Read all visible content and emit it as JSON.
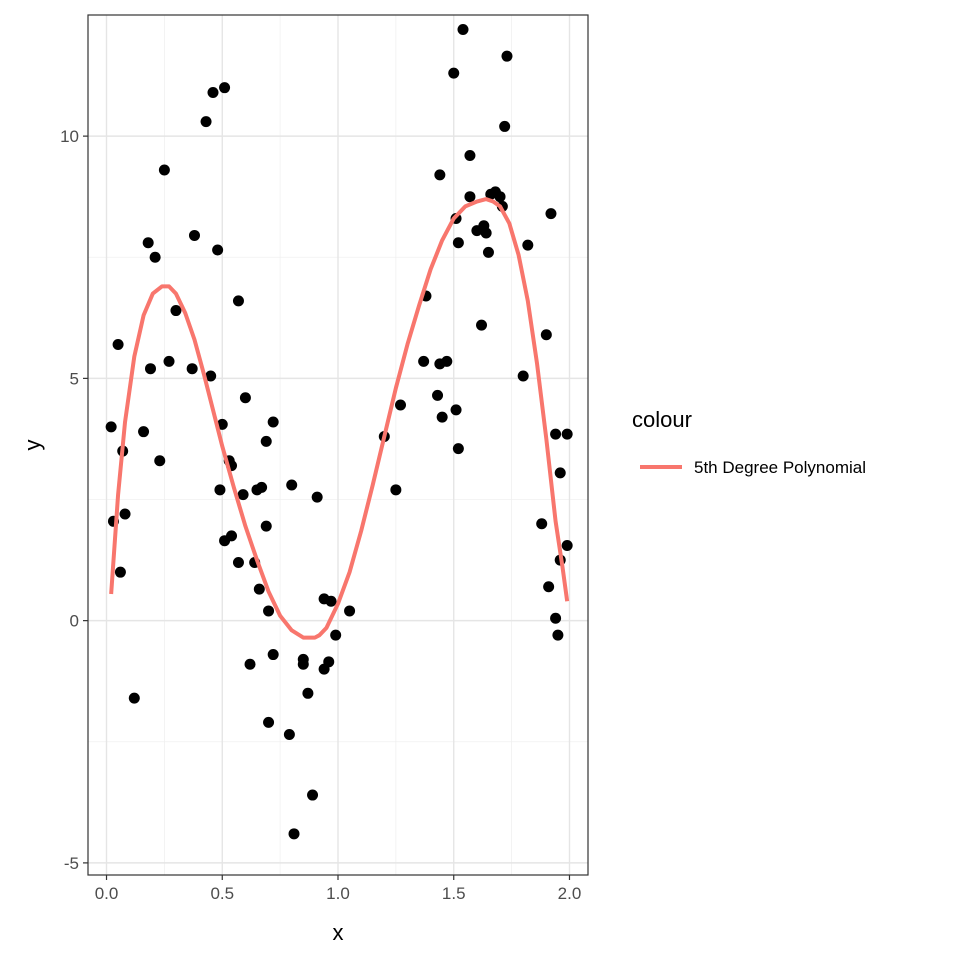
{
  "chart_data": {
    "type": "scatter",
    "title": "",
    "xlabel": "x",
    "ylabel": "y",
    "xlim": [
      -0.08,
      2.08
    ],
    "ylim": [
      -5.25,
      12.5
    ],
    "x_ticks": [
      0.0,
      0.5,
      1.0,
      1.5,
      2.0
    ],
    "x_tick_labels": [
      "0.0",
      "0.5",
      "1.0",
      "1.5",
      "2.0"
    ],
    "y_ticks": [
      -5,
      0,
      5,
      10
    ],
    "y_tick_labels": [
      "-5",
      "0",
      "5",
      "10"
    ],
    "grid": true,
    "legend": {
      "title": "colour",
      "position": "right",
      "entries": [
        {
          "label": "5th Degree Polynomial",
          "color": "#f8766d"
        }
      ]
    },
    "points": [
      [
        0.02,
        4.0
      ],
      [
        0.03,
        2.05
      ],
      [
        0.05,
        5.7
      ],
      [
        0.06,
        1.0
      ],
      [
        0.07,
        3.5
      ],
      [
        0.08,
        2.2
      ],
      [
        0.12,
        -1.6
      ],
      [
        0.16,
        3.9
      ],
      [
        0.18,
        7.8
      ],
      [
        0.19,
        5.2
      ],
      [
        0.21,
        7.5
      ],
      [
        0.23,
        3.3
      ],
      [
        0.25,
        9.3
      ],
      [
        0.27,
        5.35
      ],
      [
        0.3,
        6.4
      ],
      [
        0.37,
        5.2
      ],
      [
        0.38,
        7.95
      ],
      [
        0.43,
        10.3
      ],
      [
        0.45,
        5.05
      ],
      [
        0.46,
        10.9
      ],
      [
        0.48,
        7.65
      ],
      [
        0.49,
        2.7
      ],
      [
        0.5,
        4.05
      ],
      [
        0.51,
        11.0
      ],
      [
        0.51,
        1.65
      ],
      [
        0.53,
        3.3
      ],
      [
        0.54,
        3.2
      ],
      [
        0.54,
        1.75
      ],
      [
        0.57,
        6.6
      ],
      [
        0.57,
        1.2
      ],
      [
        0.59,
        2.6
      ],
      [
        0.6,
        4.6
      ],
      [
        0.62,
        -0.9
      ],
      [
        0.64,
        1.2
      ],
      [
        0.65,
        2.7
      ],
      [
        0.66,
        0.65
      ],
      [
        0.67,
        2.75
      ],
      [
        0.69,
        3.7
      ],
      [
        0.69,
        1.95
      ],
      [
        0.7,
        0.2
      ],
      [
        0.7,
        -2.1
      ],
      [
        0.72,
        4.1
      ],
      [
        0.72,
        -0.7
      ],
      [
        0.79,
        -2.35
      ],
      [
        0.8,
        2.8
      ],
      [
        0.81,
        -4.4
      ],
      [
        0.85,
        -0.8
      ],
      [
        0.85,
        -0.9
      ],
      [
        0.87,
        -1.5
      ],
      [
        0.89,
        -3.6
      ],
      [
        0.91,
        2.55
      ],
      [
        0.94,
        0.45
      ],
      [
        0.94,
        -1.0
      ],
      [
        0.96,
        -0.85
      ],
      [
        0.97,
        0.4
      ],
      [
        0.99,
        -0.3
      ],
      [
        1.05,
        0.2
      ],
      [
        1.2,
        3.8
      ],
      [
        1.25,
        2.7
      ],
      [
        1.27,
        4.45
      ],
      [
        1.37,
        5.35
      ],
      [
        1.38,
        6.7
      ],
      [
        1.43,
        4.65
      ],
      [
        1.44,
        9.2
      ],
      [
        1.44,
        5.3
      ],
      [
        1.45,
        4.2
      ],
      [
        1.47,
        5.35
      ],
      [
        1.5,
        11.3
      ],
      [
        1.51,
        8.3
      ],
      [
        1.51,
        4.35
      ],
      [
        1.52,
        7.8
      ],
      [
        1.52,
        3.55
      ],
      [
        1.54,
        12.2
      ],
      [
        1.57,
        8.75
      ],
      [
        1.57,
        9.6
      ],
      [
        1.6,
        8.05
      ],
      [
        1.62,
        6.1
      ],
      [
        1.63,
        8.15
      ],
      [
        1.64,
        8.0
      ],
      [
        1.65,
        7.6
      ],
      [
        1.66,
        8.8
      ],
      [
        1.68,
        8.85
      ],
      [
        1.7,
        8.75
      ],
      [
        1.71,
        8.55
      ],
      [
        1.73,
        11.65
      ],
      [
        1.72,
        10.2
      ],
      [
        1.8,
        5.05
      ],
      [
        1.82,
        7.75
      ],
      [
        1.88,
        2.0
      ],
      [
        1.9,
        5.9
      ],
      [
        1.91,
        0.7
      ],
      [
        1.92,
        8.4
      ],
      [
        1.94,
        3.85
      ],
      [
        1.94,
        0.05
      ],
      [
        1.95,
        -0.3
      ],
      [
        1.96,
        3.05
      ],
      [
        1.96,
        1.25
      ],
      [
        1.99,
        3.85
      ],
      [
        1.99,
        1.55
      ]
    ],
    "series": [
      {
        "name": "5th Degree Polynomial",
        "color": "#f8766d",
        "x": [
          0.02,
          0.05,
          0.08,
          0.12,
          0.16,
          0.2,
          0.24,
          0.27,
          0.3,
          0.34,
          0.38,
          0.42,
          0.46,
          0.5,
          0.55,
          0.6,
          0.65,
          0.7,
          0.75,
          0.8,
          0.85,
          0.9,
          0.92,
          0.95,
          1.0,
          1.05,
          1.1,
          1.15,
          1.2,
          1.25,
          1.3,
          1.35,
          1.4,
          1.45,
          1.5,
          1.55,
          1.6,
          1.64,
          1.67,
          1.7,
          1.74,
          1.78,
          1.82,
          1.86,
          1.9,
          1.94,
          1.97,
          1.99
        ],
        "y": [
          0.55,
          2.6,
          4.1,
          5.45,
          6.3,
          6.75,
          6.9,
          6.9,
          6.75,
          6.35,
          5.8,
          5.1,
          4.35,
          3.6,
          2.75,
          1.95,
          1.25,
          0.6,
          0.1,
          -0.2,
          -0.35,
          -0.35,
          -0.3,
          -0.15,
          0.35,
          1.0,
          1.85,
          2.8,
          3.8,
          4.8,
          5.7,
          6.5,
          7.25,
          7.85,
          8.3,
          8.55,
          8.65,
          8.7,
          8.65,
          8.55,
          8.2,
          7.55,
          6.6,
          5.3,
          3.75,
          2.05,
          1.1,
          0.4
        ]
      }
    ]
  }
}
